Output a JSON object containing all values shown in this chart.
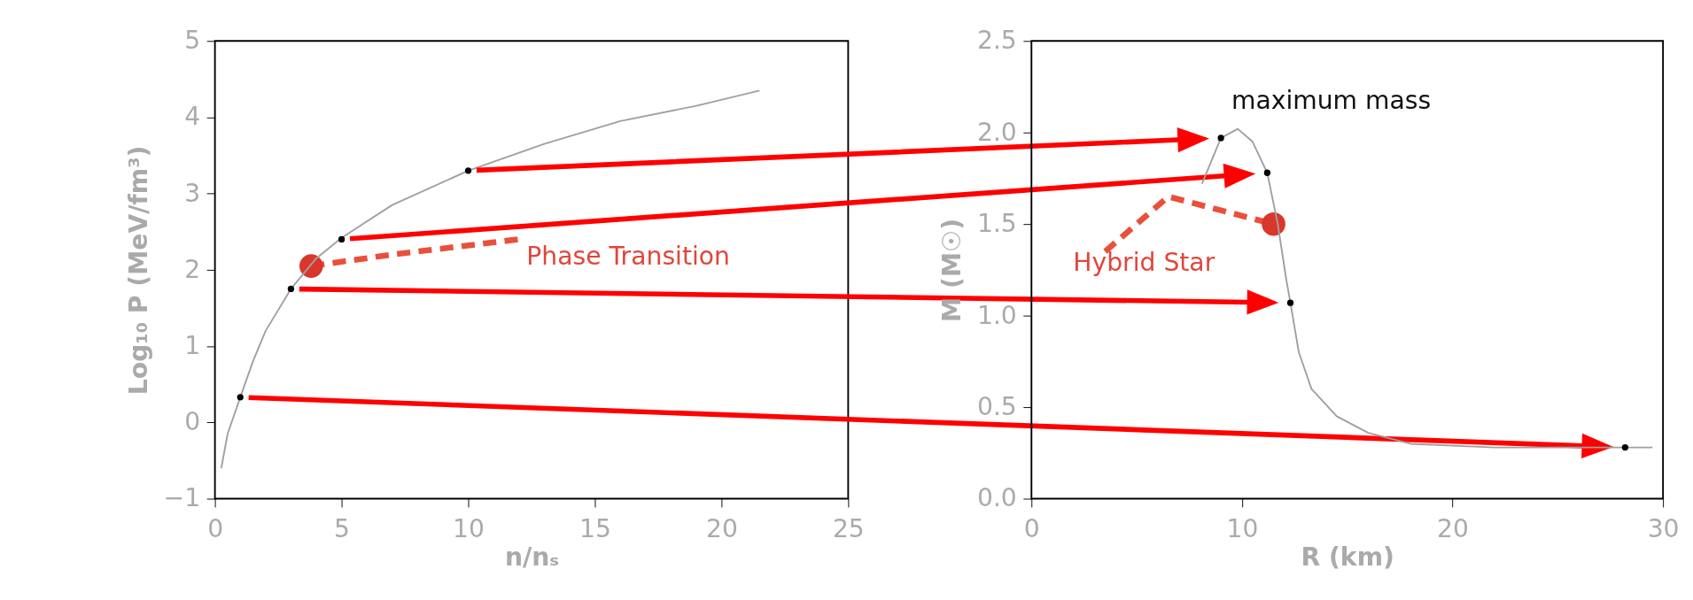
{
  "chart_data": [
    {
      "type": "line",
      "xlabel": "n/nₛ",
      "ylabel": "Log₁₀ P (MeV/fm³)",
      "xlim": [
        0,
        25
      ],
      "xticks": [
        0,
        5,
        10,
        15,
        20,
        25
      ],
      "ylim": [
        -1,
        5
      ],
      "yticks": [
        {
          "value": -1,
          "label": "−1"
        },
        0,
        1,
        2,
        3,
        4,
        5
      ],
      "grid": false,
      "series": [
        {
          "type": "line",
          "color": "#a0a0a0",
          "x": [
            0.25,
            0.5,
            1,
            1.5,
            2,
            3,
            4,
            5,
            7,
            10,
            13,
            16,
            19,
            21.5
          ],
          "values": [
            -0.6,
            -0.15,
            0.33,
            0.8,
            1.2,
            1.75,
            2.15,
            2.42,
            2.85,
            3.3,
            3.65,
            3.95,
            4.15,
            4.35
          ]
        },
        {
          "type": "scatter",
          "color": "#000000",
          "x": [
            1,
            3,
            5,
            10
          ],
          "values": [
            0.33,
            1.75,
            2.4,
            3.3
          ]
        },
        {
          "type": "line",
          "color": "#e8503c",
          "line_style": "dashed",
          "x": [
            3.8,
            7,
            12
          ],
          "values": [
            2.05,
            2.2,
            2.4
          ]
        },
        {
          "type": "scatter",
          "color": "#d9372c",
          "x": [
            3.8
          ],
          "values": [
            2.05
          ]
        }
      ],
      "annotations": [
        "Phase Transition"
      ]
    },
    {
      "type": "line",
      "xlabel": "R (km)",
      "ylabel": "M (M☉)",
      "xlim": [
        0,
        30
      ],
      "xticks": [
        0,
        10,
        20,
        30
      ],
      "ylim": [
        0,
        2.5
      ],
      "yticks": [
        {
          "value": 0,
          "label": "0.0"
        },
        0.5,
        {
          "value": 1,
          "label": "1.0"
        },
        1.5,
        {
          "value": 2,
          "label": "2.0"
        },
        2.5
      ],
      "grid": false,
      "series": [
        {
          "type": "line",
          "color": "#a0a0a0",
          "x": [
            8.1,
            9,
            9.8,
            10.5,
            11.2,
            11.7,
            12.1,
            12.3,
            12.7,
            13.3,
            14.5,
            16,
            18,
            22,
            28.2,
            29.5
          ],
          "values": [
            1.72,
            1.97,
            2.02,
            1.95,
            1.78,
            1.5,
            1.2,
            1.07,
            0.8,
            0.6,
            0.45,
            0.36,
            0.3,
            0.28,
            0.28,
            0.28
          ]
        },
        {
          "type": "scatter",
          "color": "#000000",
          "x": [
            28.2,
            12.3,
            11.2,
            9
          ],
          "values": [
            0.28,
            1.07,
            1.78,
            1.97
          ]
        },
        {
          "type": "line",
          "color": "#e8503c",
          "line_style": "dashed",
          "x": [
            3.5,
            6.5,
            11.5
          ],
          "values": [
            1.35,
            1.65,
            1.5
          ]
        },
        {
          "type": "scatter",
          "color": "#d9372c",
          "x": [
            11.5
          ],
          "values": [
            1.5
          ]
        }
      ],
      "annotations": [
        "maximum mass",
        "Hybrid Star"
      ]
    }
  ]
}
